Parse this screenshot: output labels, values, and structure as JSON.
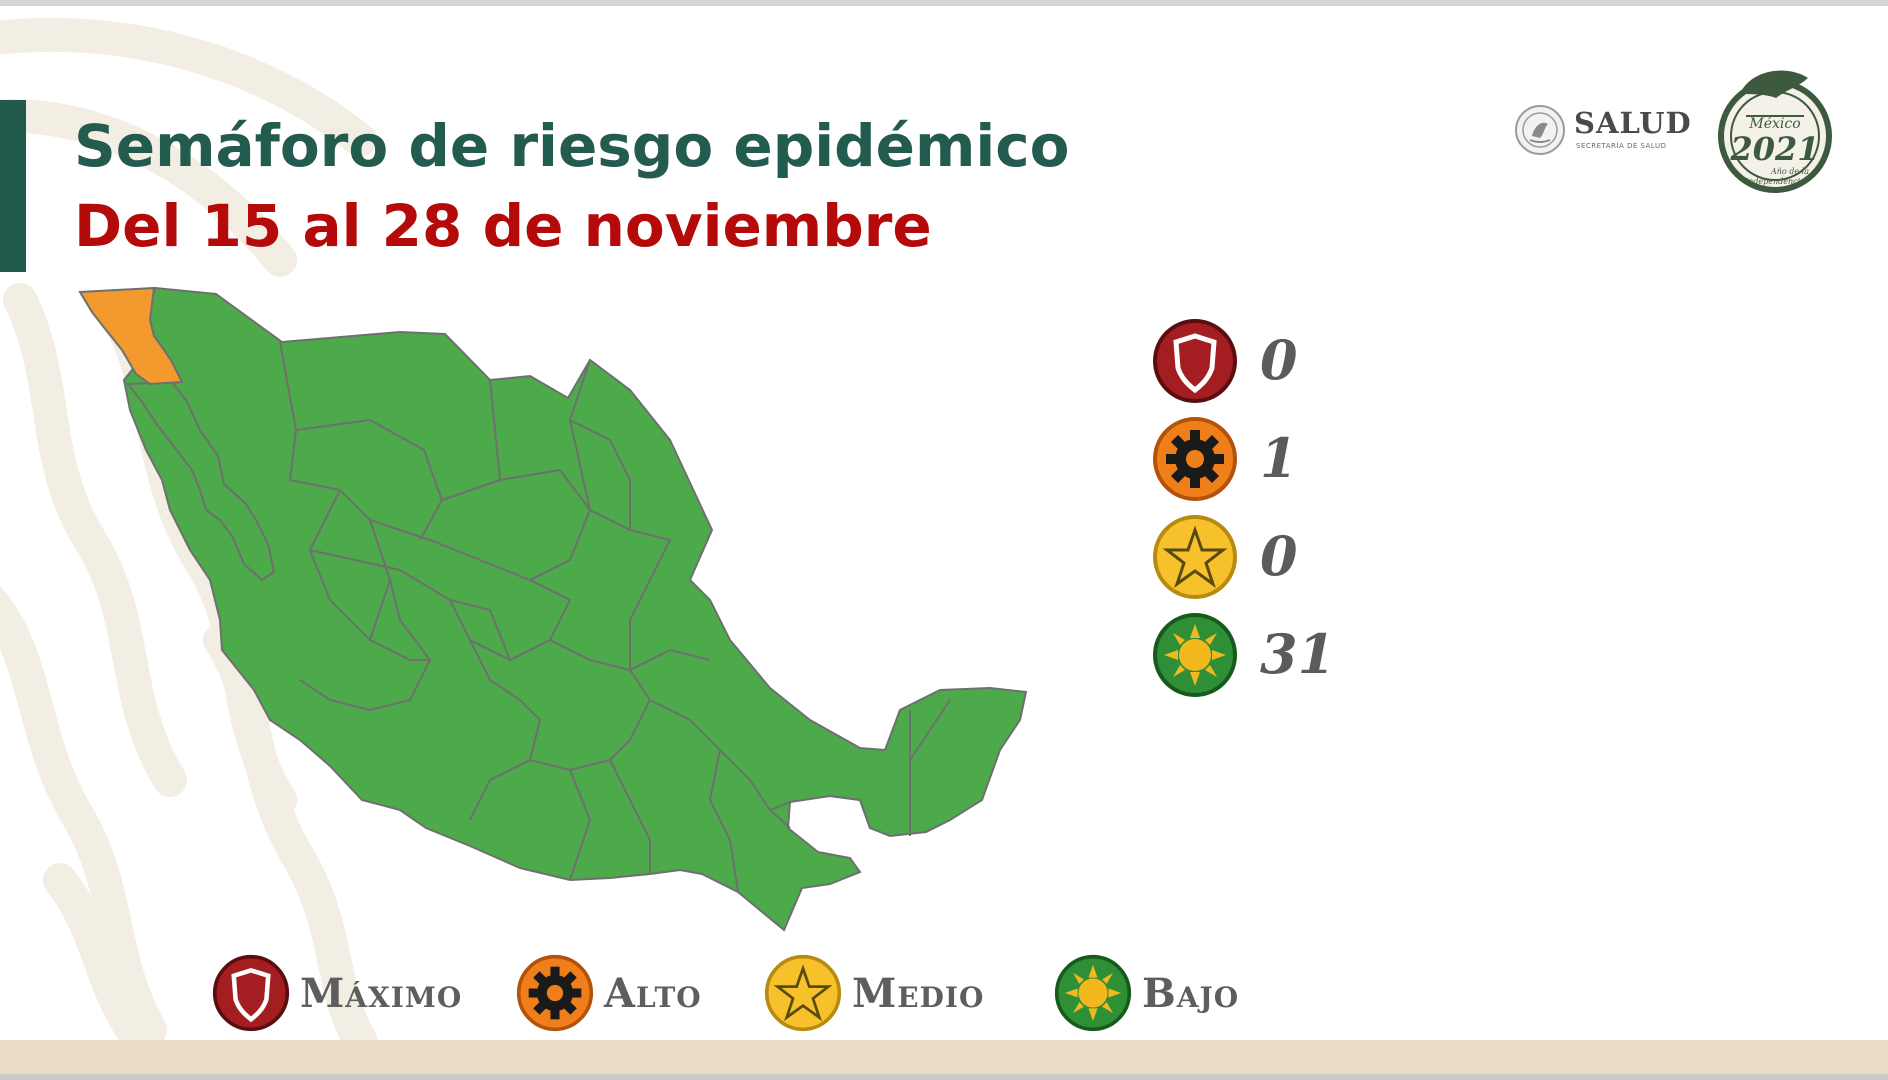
{
  "header": {
    "title": "Semáforo de riesgo epidémico",
    "subtitle": "Del 15 al 28 de noviembre"
  },
  "logos": {
    "salud_name": "SALUD",
    "salud_sub": "SECRETARÍA DE SALUD",
    "anniversary_icon": "mexico-2021-seal-icon"
  },
  "counts": [
    {
      "level": "Máximo",
      "icon": "shield-icon",
      "value": "0",
      "color": "#a31d21"
    },
    {
      "level": "Alto",
      "icon": "gear-icon",
      "value": "1",
      "color": "#f07f1b"
    },
    {
      "level": "Medio",
      "icon": "star-icon",
      "value": "0",
      "color": "#f6c12b"
    },
    {
      "level": "Bajo",
      "icon": "sun-icon",
      "value": "31",
      "color": "#2f8f37"
    }
  ],
  "legend": [
    {
      "label": "Máximo",
      "icon": "shield-icon",
      "color": "#a31d21"
    },
    {
      "label": "Alto",
      "icon": "gear-icon",
      "color": "#f07f1b"
    },
    {
      "label": "Medio",
      "icon": "star-icon",
      "color": "#f6c12b"
    },
    {
      "label": "Bajo",
      "icon": "sun-icon",
      "color": "#2f8f37"
    }
  ],
  "map": {
    "orange_region": "Baja California",
    "orange_color": "#f29a2e",
    "green_color": "#4caa4a",
    "border_color": "#6f6f6f"
  }
}
